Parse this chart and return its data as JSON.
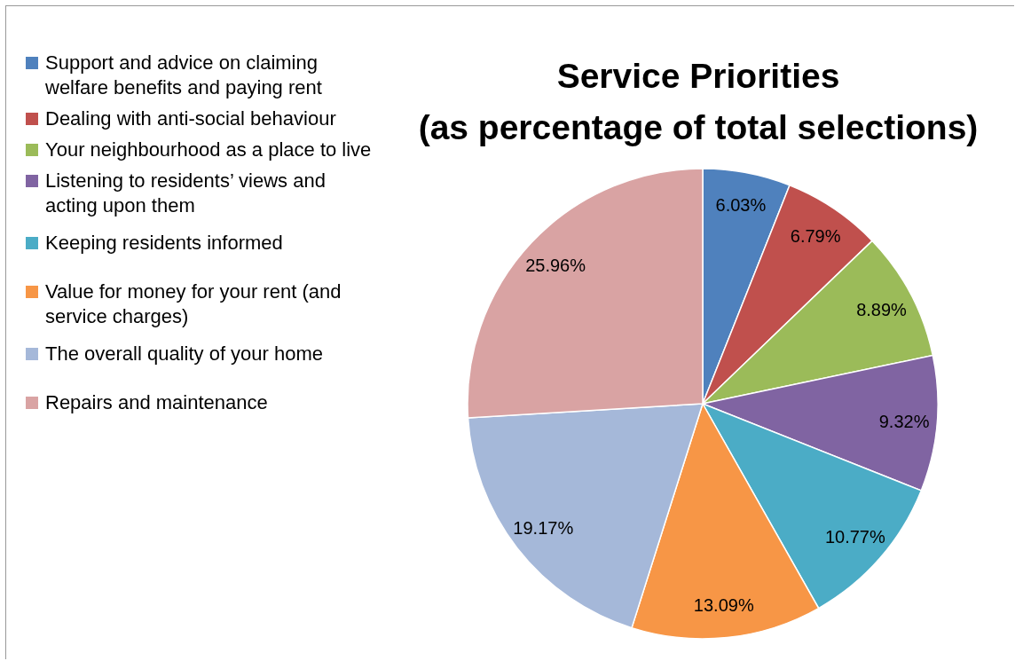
{
  "chart_data": {
    "type": "pie",
    "title": "Service Priorities\n(as percentage of total selections)",
    "categories": [
      "Support and advice on claiming welfare benefits and paying rent",
      "Dealing with anti-social behaviour",
      "Your neighbourhood as a place to live",
      "Listening to residents’ views and acting upon them",
      "Keeping residents informed",
      "Value for money for your rent (and service charges)",
      "The overall quality of your home",
      "Repairs and maintenance"
    ],
    "values": [
      6.03,
      6.79,
      8.89,
      9.32,
      10.77,
      13.09,
      19.17,
      25.96
    ],
    "colors": [
      "#4f81bd",
      "#c0504d",
      "#9bbb59",
      "#8064a2",
      "#4bacc6",
      "#f79646",
      "#a5b8d9",
      "#d9a3a3"
    ],
    "value_labels": [
      "6.03%",
      "6.79%",
      "8.89%",
      "9.32%",
      "10.77%",
      "13.09%",
      "19.17%",
      "25.96%"
    ],
    "legend": "left"
  }
}
